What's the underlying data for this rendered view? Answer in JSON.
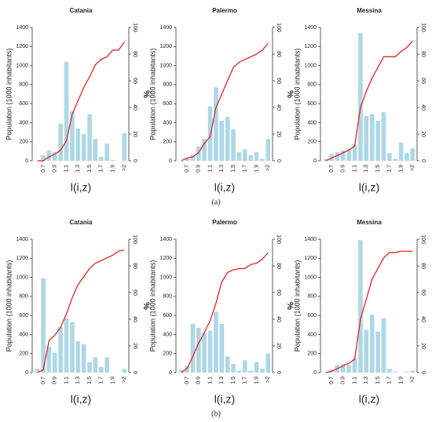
{
  "chart_data": [
    {
      "type": "bar",
      "title": "Catania",
      "y_label": "Population (1000 inhabitants)",
      "y2_label": "%",
      "x_label": "l(i,z)",
      "categories": [
        null,
        "0.7",
        null,
        "0.9",
        null,
        "1.1",
        null,
        "1.3",
        null,
        "1.5",
        null,
        "1.7",
        null,
        "1.9",
        null,
        ">2"
      ],
      "values": [
        0,
        60,
        110,
        90,
        390,
        1040,
        520,
        340,
        280,
        490,
        230,
        40,
        180,
        10,
        0,
        290
      ],
      "color": "#add8e6",
      "line": {
        "values": [
          0,
          0,
          3,
          5,
          8,
          15,
          35,
          45,
          55,
          63,
          72,
          76,
          78,
          83,
          83,
          89
        ],
        "color": "#ee1111",
        "axis": "y2"
      },
      "ylim": [
        0,
        1400
      ],
      "yticks": [
        0,
        200,
        400,
        600,
        800,
        1000,
        1200,
        1400
      ],
      "y2lim": [
        0,
        100
      ],
      "y2ticks": [
        0,
        20,
        40,
        60,
        80,
        100
      ]
    },
    {
      "type": "bar",
      "title": "Palermo",
      "y_label": "Population (1000 inhabitants)",
      "y2_label": "%",
      "x_label": "l(i,z)",
      "categories": [
        null,
        "0.7",
        null,
        "0.9",
        null,
        "1.1",
        null,
        "1.3",
        null,
        "1.5",
        null,
        "1.7",
        null,
        "1.9",
        null,
        ">2"
      ],
      "values": [
        0,
        30,
        60,
        150,
        230,
        570,
        770,
        420,
        460,
        330,
        90,
        120,
        60,
        90,
        20,
        230
      ],
      "color": "#add8e6",
      "line": {
        "values": [
          0,
          2,
          3,
          6,
          13,
          18,
          40,
          50,
          60,
          70,
          74,
          76,
          78,
          80,
          83,
          88
        ],
        "color": "#ee1111",
        "axis": "y2"
      },
      "ylim": [
        0,
        1400
      ],
      "yticks": [
        0,
        200,
        400,
        600,
        800,
        1000,
        1200,
        1400
      ],
      "y2lim": [
        0,
        100
      ],
      "y2ticks": [
        0,
        20,
        40,
        60,
        80,
        100
      ]
    },
    {
      "type": "bar",
      "title": "Messina",
      "y_label": "Population (1000 inhabitants)",
      "y2_label": "%",
      "x_label": "l(i,z)",
      "categories": [
        null,
        "0.7",
        null,
        "0.9",
        null,
        "1.1",
        null,
        "1.3",
        null,
        "1.5",
        null,
        "1.7",
        null,
        "1.9",
        null,
        ">2"
      ],
      "values": [
        20,
        70,
        90,
        110,
        130,
        170,
        1340,
        470,
        490,
        420,
        510,
        80,
        20,
        190,
        80,
        130
      ],
      "color": "#add8e6",
      "line": {
        "values": [
          0,
          2,
          4,
          6,
          8,
          11,
          40,
          52,
          62,
          70,
          78,
          78,
          78,
          82,
          85,
          90
        ],
        "color": "#ee1111",
        "axis": "y2"
      },
      "ylim": [
        0,
        1400
      ],
      "yticks": [
        0,
        200,
        400,
        600,
        800,
        1000,
        1200,
        1400
      ],
      "y2lim": [
        0,
        100
      ],
      "y2ticks": [
        0,
        20,
        40,
        60,
        80,
        100
      ]
    },
    {
      "type": "bar",
      "title": "Catania",
      "y_label": "Population (1000 inhabitants)",
      "y2_label": "%",
      "x_label": "l(i,z)",
      "categories": [
        null,
        "0.7",
        null,
        "0.9",
        null,
        "1.1",
        null,
        "1.3",
        null,
        "1.5",
        null,
        "1.7",
        null,
        "1.9",
        null,
        ">2"
      ],
      "values": [
        40,
        990,
        270,
        210,
        480,
        570,
        530,
        330,
        300,
        110,
        160,
        60,
        160,
        0,
        0,
        40
      ],
      "color": "#add8e6",
      "line": {
        "values": [
          0,
          2,
          24,
          28,
          34,
          44,
          56,
          66,
          72,
          78,
          82,
          84,
          86,
          88,
          91,
          92
        ],
        "color": "#ee1111",
        "axis": "y2"
      },
      "ylim": [
        0,
        1400
      ],
      "yticks": [
        0,
        200,
        400,
        600,
        800,
        1000,
        1200,
        1400
      ],
      "y2lim": [
        0,
        100
      ],
      "y2ticks": [
        0,
        20,
        40,
        60,
        80,
        100
      ]
    },
    {
      "type": "bar",
      "title": "Palermo",
      "y_label": "Population (1000 inhabitants)",
      "y2_label": "%",
      "x_label": "l(i,z)",
      "categories": [
        null,
        "0.7",
        null,
        "0.9",
        null,
        "1.1",
        null,
        "1.3",
        null,
        "1.5",
        null,
        "1.7",
        null,
        "1.9",
        null,
        ">2"
      ],
      "values": [
        30,
        70,
        510,
        470,
        420,
        440,
        640,
        510,
        170,
        90,
        20,
        130,
        20,
        110,
        40,
        200
      ],
      "color": "#add8e6",
      "line": {
        "values": [
          0,
          3,
          12,
          22,
          30,
          39,
          52,
          68,
          75,
          77,
          78,
          78,
          81,
          82,
          85,
          90
        ],
        "color": "#ee1111",
        "axis": "y2"
      },
      "ylim": [
        0,
        1400
      ],
      "yticks": [
        0,
        200,
        400,
        600,
        800,
        1000,
        1200,
        1400
      ],
      "y2lim": [
        0,
        100
      ],
      "y2ticks": [
        0,
        20,
        40,
        60,
        80,
        100
      ]
    },
    {
      "type": "bar",
      "title": "Messina",
      "y_label": "Population (1000 inhabitants)",
      "y2_label": "%",
      "x_label": "l(i,z)",
      "categories": [
        null,
        "0.7",
        null,
        "0.9",
        null,
        "1.1",
        null,
        "1.3",
        null,
        "1.5",
        null,
        "1.7",
        null,
        "1.9",
        null,
        ">2"
      ],
      "values": [
        0,
        30,
        80,
        90,
        80,
        150,
        1390,
        450,
        610,
        430,
        570,
        40,
        10,
        0,
        10,
        20
      ],
      "color": "#add8e6",
      "line": {
        "values": [
          0,
          1,
          3,
          5,
          7,
          10,
          40,
          55,
          70,
          78,
          86,
          90,
          90,
          91,
          91,
          91
        ],
        "color": "#ee1111",
        "axis": "y2"
      },
      "ylim": [
        0,
        1400
      ],
      "yticks": [
        0,
        200,
        400,
        600,
        800,
        1000,
        1200,
        1400
      ],
      "y2lim": [
        0,
        100
      ],
      "y2ticks": [
        0,
        20,
        40,
        60,
        80,
        100
      ]
    }
  ],
  "captions": [
    "(a)",
    "(b)"
  ]
}
